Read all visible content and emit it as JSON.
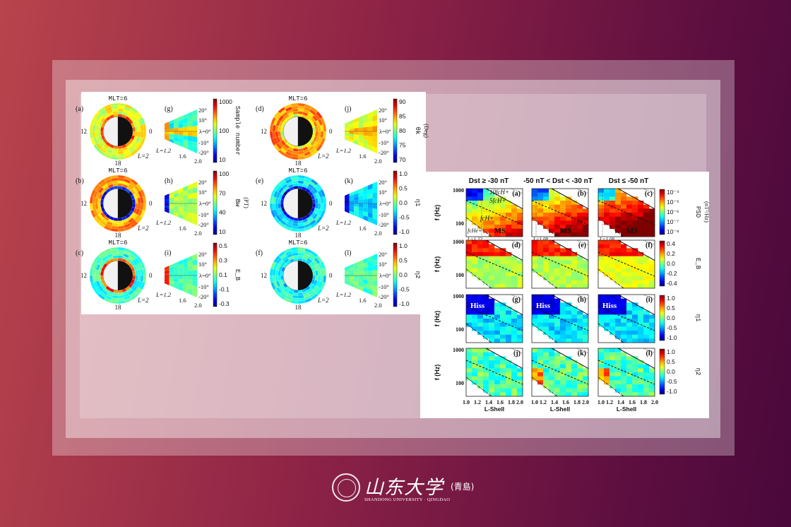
{
  "left_figure": {
    "circle_labels": {
      "top": "MLT=6",
      "left": "12",
      "right": "0",
      "bottom": "18",
      "lshell": "L=2"
    },
    "circle_letters": [
      "(a)",
      "(b)",
      "(c)",
      "(d)",
      "(e)",
      "(f)"
    ],
    "fan_letters": [
      "(g)",
      "(h)",
      "(i)",
      "(j)",
      "(k)",
      "(l)"
    ],
    "fan_lat_ticks": [
      "20°",
      "10°",
      "λ=0°",
      "-10°",
      "-20°"
    ],
    "fan_l_ticks": [
      "L=1.2",
      "1.6",
      "2.0"
    ],
    "colorbars": [
      {
        "ticks": [
          "1000",
          "100",
          "10"
        ],
        "label": "Sample number",
        "unit": ""
      },
      {
        "ticks": [
          "100",
          "70",
          "40",
          "10"
        ],
        "label": "Bw",
        "unit": "(PT)"
      },
      {
        "ticks": [
          "0.5",
          "0.3",
          "0.1",
          "-0.1",
          "-0.3"
        ],
        "label": "E_B",
        "unit": ""
      },
      {
        "ticks": [
          "90",
          "85",
          "80",
          "75",
          "70"
        ],
        "label": "θk",
        "unit": "(Deg)"
      },
      {
        "ticks": [
          "1.0",
          "0.5",
          "0.0",
          "-0.5",
          "-1.0"
        ],
        "label": "η1",
        "unit": ""
      },
      {
        "ticks": [
          "1.0",
          "0.5",
          "0.0",
          "-0.5",
          "-1.0"
        ],
        "label": "η2",
        "unit": ""
      }
    ]
  },
  "right_figure": {
    "column_titles": [
      "Dst ≥ -30 nT",
      "-50 nT < Dst < -30 nT",
      "Dst ≤ -50 nT"
    ],
    "panel_letters": [
      "(a)",
      "(b)",
      "(c)",
      "(d)",
      "(e)",
      "(f)",
      "(g)",
      "(h)",
      "(i)",
      "(j)",
      "(k)",
      "(l)"
    ],
    "y_ticks": [
      "1000",
      "100"
    ],
    "y_label": "f (Hz)",
    "x_ticks": [
      "1.0",
      "1.2",
      "1.4",
      "1.6",
      "1.8",
      "2.0"
    ],
    "x_label": "L-Shell",
    "annotations": {
      "f10": "10fcH+",
      "f5": "5fcH+",
      "fh": "fcH+",
      "fhe": "fcHe+",
      "ms": "MS",
      "hiss": "Hiss",
      "l_values": [
        "L=1.22",
        "L=1.08",
        "L=1.08"
      ]
    },
    "colorbars": [
      {
        "ticks": [
          "10⁻⁴",
          "10⁻⁵",
          "10⁻⁶",
          "10⁻⁷",
          "10⁻⁸"
        ],
        "label": "PSD",
        "unit": "(nT²/Hz)"
      },
      {
        "ticks": [
          "0.4",
          "0.2",
          "0.0",
          "-0.2",
          "-0.4"
        ],
        "label": "E_B",
        "unit": ""
      },
      {
        "ticks": [
          "1.0",
          "0.5",
          "0.0",
          "-0.5",
          "-1.0"
        ],
        "label": "η1",
        "unit": ""
      },
      {
        "ticks": [
          "1.0",
          "0.5",
          "0.0",
          "-0.5",
          "-1.0"
        ],
        "label": "η2",
        "unit": ""
      }
    ]
  },
  "logo": {
    "chinese": "山东大学",
    "campus": "(青島)",
    "english": "SHANDONG UNIVERSITY · QINGDAO"
  }
}
